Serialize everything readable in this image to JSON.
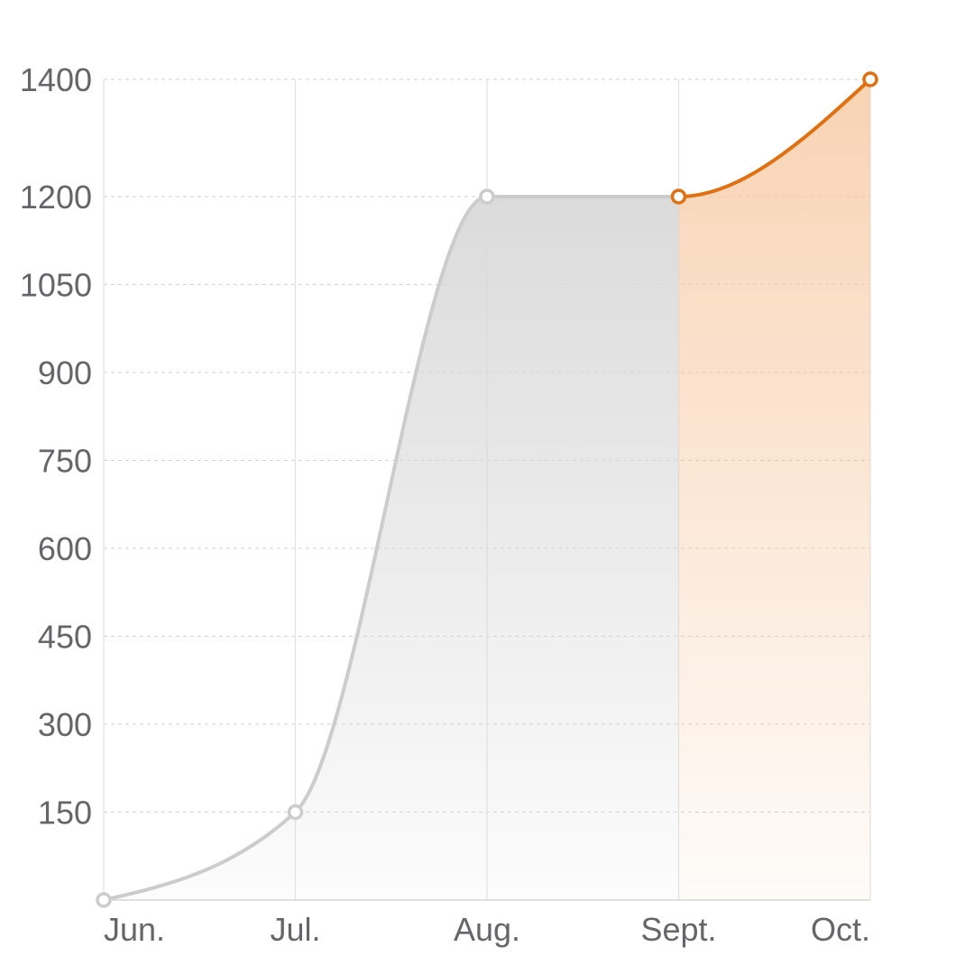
{
  "chart_data": {
    "type": "area",
    "title": "",
    "xlabel": "",
    "ylabel": "",
    "categories": [
      "Jun.",
      "Jul.",
      "Aug.",
      "Sept.",
      "Oct."
    ],
    "values": [
      0,
      150,
      1200,
      1200,
      1400
    ],
    "y_tick_labels": [
      "150",
      "300",
      "450",
      "600",
      "750",
      "900",
      "1050",
      "1200",
      "1400"
    ],
    "ylim": [
      0,
      1400
    ],
    "grid": {
      "horizontal": "dashed",
      "vertical": "solid"
    },
    "legend": "none",
    "segments": [
      {
        "from_category": "Jun.",
        "to_category": "Sept.",
        "color": "#cccccc",
        "fill_color": "#d9d9d9"
      },
      {
        "from_category": "Sept.",
        "to_category": "Oct.",
        "color": "#e07010",
        "fill_color": "#f6c49a"
      }
    ]
  }
}
